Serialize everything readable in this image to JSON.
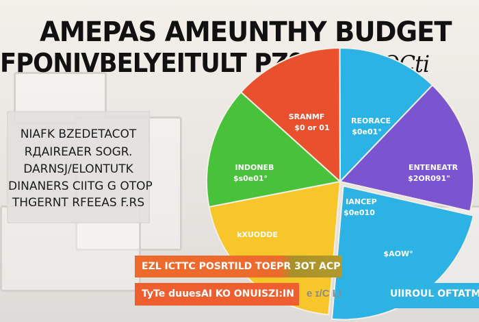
{
  "header": {
    "title_line1": "AMEPAS AMEUNTHY BUDGET",
    "title_line2": "FPONIVBELYEITULT PZ9",
    "title_handwritten": "Pl&y 2OCti"
  },
  "info_box": {
    "lines": [
      "NIAFK  BZEDETACOT",
      "RДAIREAER  SOGR.",
      "DARNSJ/ELONTUTK",
      "DINANERS  CIITG G OTOP",
      "THGERNT  RFEEAS F.RS"
    ]
  },
  "banners": {
    "primary": "EZL ICTTC POSRTILD TOEPR 3OT ACP",
    "secondary": "TyTe duuesAI KO ONUISZI:IN",
    "right": "UlIROUL OFTATM",
    "faint": "e ɪ/C LI"
  },
  "chart_data": {
    "type": "pie",
    "title": "",
    "legend": "none",
    "slices": [
      {
        "label": "SRANMF",
        "value_label": "$0 or 01",
        "share_pct": 13.3,
        "color": "#e8502e"
      },
      {
        "label": "REORACE",
        "value_label": "$0e01°",
        "share_pct": 12.2,
        "color": "#2bb3e6"
      },
      {
        "label": "ENTENEATR",
        "value_label": "$2OR091\"",
        "share_pct": 16.4,
        "color": "#7b55cf"
      },
      {
        "label": "IANCEP",
        "value_label": "$0e010",
        "share_pct": 22.8,
        "color": "#2cb2e4"
      },
      {
        "label": "$AOW°",
        "value_label": "",
        "share_pct": 0,
        "color": "#2cb2e4"
      },
      {
        "label": "kXUODDE",
        "value_label": "",
        "share_pct": 20.6,
        "color": "#f6c62a"
      },
      {
        "label": "INDONEB",
        "value_label": "$s0e01°",
        "share_pct": 14.7,
        "color": "#48c23a"
      }
    ]
  }
}
